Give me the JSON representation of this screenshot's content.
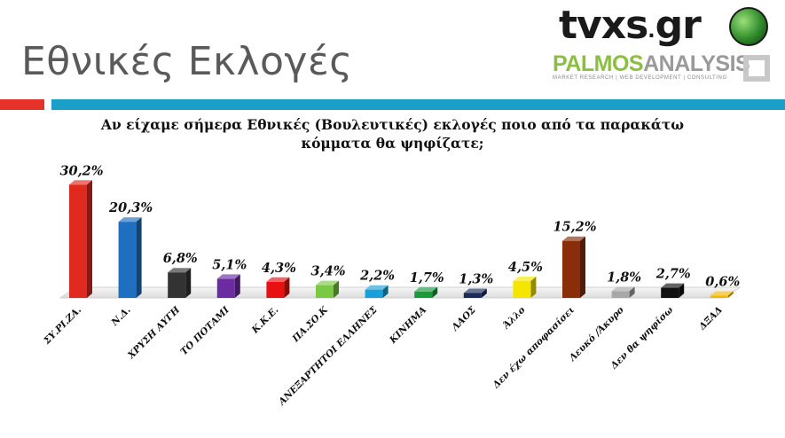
{
  "header": {
    "title": "Εθνικές Εκλογές",
    "logo_tvxs_part1": "tvxs",
    "logo_tvxs_part2": ".",
    "logo_tvxs_part3": "gr",
    "logo_palmos_part1": "PALMOS",
    "logo_palmos_part2": "ANALYSIS",
    "logo_palmos_tagline": "MARKET RESEARCH | WEB DEVELOPMENT | CONSULTING"
  },
  "colors": {
    "title_text": "#5a5a5a",
    "accent_red": "#e63329",
    "accent_teal": "#1aa0c8"
  },
  "chart_data": {
    "type": "bar",
    "title": "Αν είχαμε σήμερα Εθνικές (Βουλευτικές) εκλογές ποιο από τα παρακάτω κόμματα θα ψηφίζατε;",
    "xlabel": "",
    "ylabel": "",
    "ylim": [
      0,
      32
    ],
    "grid": false,
    "legend": "none",
    "categories": [
      "ΣΥ.ΡΙ.ΖΑ.",
      "Ν.Δ.",
      "ΧΡΥΣΗ ΑΥΓΗ",
      "ΤΟ ΠΟΤΑΜΙ",
      "Κ.Κ.Ε.",
      "ΠΑ.ΣΟ.Κ",
      "ΑΝΕΞΑΡΤΗΤΟΙ ΕΛΛΗΝΕΣ",
      "ΚΙΝΗΜΑ",
      "ΛΑΟΣ",
      "Άλλο",
      "Δεν έχω αποφασίσει",
      "Λευκό /Άκυρο",
      "Δεν θα ψηφίσω",
      "ΔΞΑΔ"
    ],
    "values": [
      30.2,
      20.3,
      6.8,
      5.1,
      4.3,
      3.4,
      2.2,
      1.7,
      1.3,
      4.5,
      15.2,
      1.8,
      2.7,
      0.6
    ],
    "data_labels": [
      "30,2%",
      "20,3%",
      "6,8%",
      "5,1%",
      "4,3%",
      "3,4%",
      "2,2%",
      "1,7%",
      "1,3%",
      "4,5%",
      "15,2%",
      "1,8%",
      "2,7%",
      "0,6%"
    ],
    "bar_colors": [
      "#e02a1f",
      "#1f6fc0",
      "#333333",
      "#6a2ca0",
      "#e81010",
      "#7ac943",
      "#1aa0d8",
      "#1a9a3a",
      "#1c2a5a",
      "#f5e600",
      "#8a2e0a",
      "#a8a8a8",
      "#111111",
      "#f0b800"
    ]
  }
}
